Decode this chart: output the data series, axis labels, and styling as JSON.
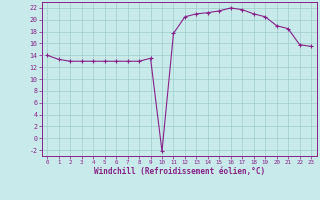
{
  "x": [
    0,
    1,
    2,
    3,
    4,
    5,
    6,
    7,
    8,
    9,
    10,
    11,
    12,
    13,
    14,
    15,
    16,
    17,
    18,
    19,
    20,
    21,
    22,
    23
  ],
  "y": [
    14.0,
    13.3,
    13.0,
    13.0,
    13.0,
    13.0,
    13.0,
    13.0,
    13.0,
    13.5,
    -2.2,
    17.7,
    20.5,
    21.0,
    21.2,
    21.5,
    22.0,
    21.7,
    21.0,
    20.5,
    19.0,
    18.5,
    15.8,
    15.5
  ],
  "color": "#882288",
  "bg_color": "#c8eaea",
  "grid_color": "#a0cccc",
  "xlabel": "Windchill (Refroidissement éolien,°C)",
  "xlim": [
    -0.5,
    23.5
  ],
  "ylim": [
    -3,
    23
  ],
  "yticks": [
    -2,
    0,
    2,
    4,
    6,
    8,
    10,
    12,
    14,
    16,
    18,
    20,
    22
  ],
  "xticks": [
    0,
    1,
    2,
    3,
    4,
    5,
    6,
    7,
    8,
    9,
    10,
    11,
    12,
    13,
    14,
    15,
    16,
    17,
    18,
    19,
    20,
    21,
    22,
    23
  ],
  "marker": "+",
  "markersize": 3,
  "linewidth": 0.8
}
